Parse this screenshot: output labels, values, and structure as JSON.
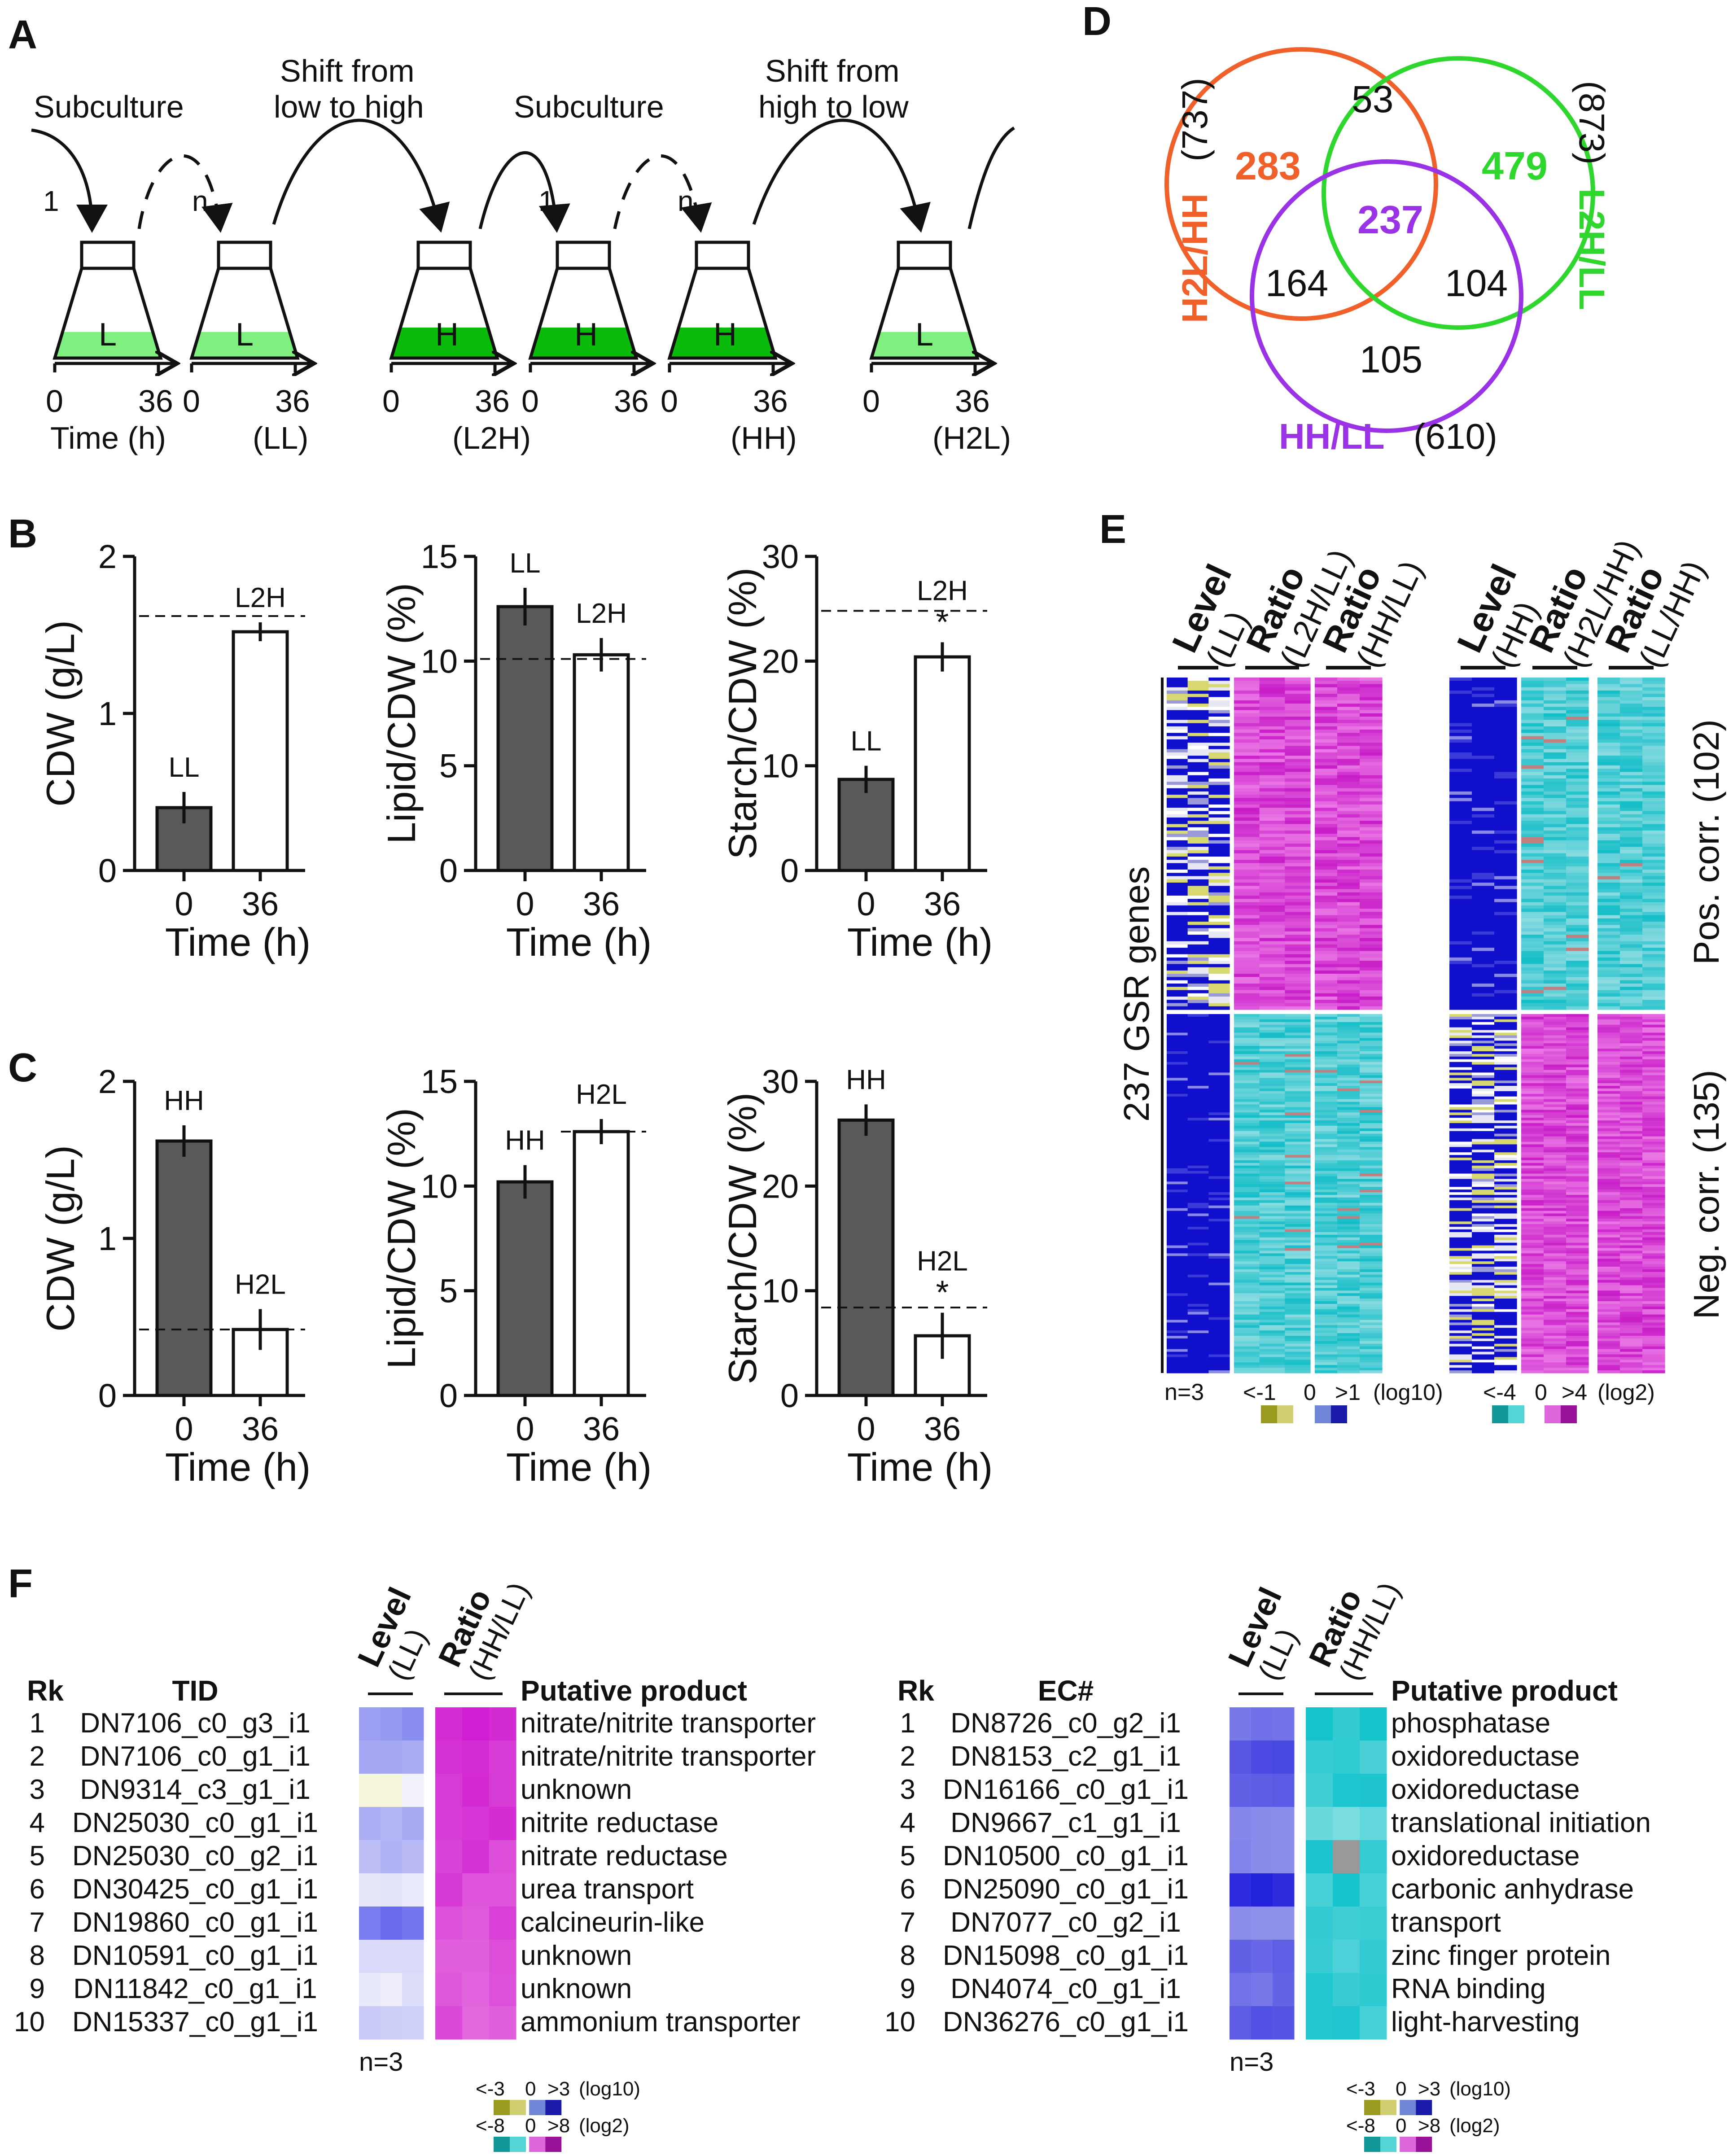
{
  "panels": {
    "A": "A",
    "B": "B",
    "C": "C",
    "D": "D",
    "E": "E",
    "F": "F"
  },
  "colors": {
    "venn_h2l": "#f0602a",
    "venn_l2h": "#2ed62e",
    "venn_hhll": "#9a32e6",
    "light_green": "#7ff07f",
    "dark_green": "#0bbb0b",
    "bar_dark": "#595959",
    "bar_light": "#ffffff",
    "heat_blue": "#1010cc",
    "heat_cyan": "#1fc8c8",
    "heat_magenta": "#d02ad0",
    "heat_yellow": "#d8d870"
  },
  "panelA": {
    "labels": {
      "subculture": "Subculture",
      "shift1_l1": "Shift from",
      "shift1_l2": "low to high",
      "shift2_l1": "Shift from",
      "shift2_l2": "high to low",
      "one": "1",
      "n": "n"
    },
    "flasks": [
      {
        "media": "L",
        "level": "low"
      },
      {
        "media": "L",
        "level": "low"
      },
      {
        "media": "H",
        "level": "high"
      },
      {
        "media": "H",
        "level": "high"
      },
      {
        "media": "H",
        "level": "high"
      },
      {
        "media": "L",
        "level": "low"
      }
    ],
    "axes": [
      {
        "start": "0",
        "end": "36",
        "below": "Time (h)"
      },
      {
        "start": "0",
        "end": "36",
        "below": "(LL)"
      },
      {
        "start": "0",
        "end": "36",
        "below": "(L2H)"
      },
      {
        "start": "0",
        "end": "36",
        "below": ""
      },
      {
        "start": "0",
        "end": "36",
        "below": "(HH)"
      },
      {
        "start": "0",
        "end": "36",
        "below": "(H2L)"
      }
    ]
  },
  "panelB": {
    "xlabel": "Time (h)",
    "x_ticks": [
      "0",
      "36"
    ],
    "charts": [
      {
        "ylabel": "CDW (g/L)",
        "ymax": 2,
        "yticks": [
          "0",
          "1",
          "2"
        ],
        "ytick_vals": [
          0,
          1,
          2
        ],
        "bars": [
          0.4,
          1.52
        ],
        "errs": [
          0.1,
          0.06
        ],
        "bar_labels": [
          "LL",
          "L2H"
        ],
        "dash": 1.62,
        "dash_span": "full",
        "star": ""
      },
      {
        "ylabel": "Lipid/CDW (%)",
        "ymax": 15,
        "yticks": [
          "0",
          "5",
          "10",
          "15"
        ],
        "ytick_vals": [
          0,
          5,
          10,
          15
        ],
        "bars": [
          12.6,
          10.3
        ],
        "errs": [
          0.9,
          0.8
        ],
        "bar_labels": [
          "LL",
          "L2H"
        ],
        "dash": 10.1,
        "dash_span": "full",
        "star": ""
      },
      {
        "ylabel": "Starch/CDW (%)",
        "ymax": 30,
        "yticks": [
          "0",
          "10",
          "20",
          "30"
        ],
        "ytick_vals": [
          0,
          10,
          20,
          30
        ],
        "bars": [
          8.7,
          20.4
        ],
        "errs": [
          1.3,
          1.4
        ],
        "bar_labels": [
          "LL",
          "L2H"
        ],
        "dash": 24.8,
        "dash_span": "full",
        "star": "*"
      }
    ]
  },
  "panelC": {
    "xlabel": "Time (h)",
    "x_ticks": [
      "0",
      "36"
    ],
    "charts": [
      {
        "ylabel": "CDW (g/L)",
        "ymax": 2,
        "yticks": [
          "0",
          "1",
          "2"
        ],
        "ytick_vals": [
          0,
          1,
          2
        ],
        "bars": [
          1.62,
          0.42
        ],
        "errs": [
          0.1,
          0.13
        ],
        "bar_labels": [
          "HH",
          "H2L"
        ],
        "dash": 0.42,
        "dash_span": "full",
        "star": ""
      },
      {
        "ylabel": "Lipid/CDW (%)",
        "ymax": 15,
        "yticks": [
          "0",
          "5",
          "10",
          "15"
        ],
        "ytick_vals": [
          0,
          5,
          10,
          15
        ],
        "bars": [
          10.2,
          12.6
        ],
        "errs": [
          0.8,
          0.6
        ],
        "bar_labels": [
          "HH",
          "H2L"
        ],
        "dash": 12.6,
        "dash_span": "right",
        "star": ""
      },
      {
        "ylabel": "Starch/CDW (%)",
        "ymax": 30,
        "yticks": [
          "0",
          "10",
          "20",
          "30"
        ],
        "ytick_vals": [
          0,
          10,
          20,
          30
        ],
        "bars": [
          26.3,
          5.7
        ],
        "errs": [
          1.5,
          2.2
        ],
        "bar_labels": [
          "HH",
          "H2L"
        ],
        "dash": 8.4,
        "dash_span": "full",
        "star": "*"
      }
    ]
  },
  "panelD": {
    "sets": [
      {
        "name": "H2L/HH",
        "total": "(737)"
      },
      {
        "name": "L2H/LL",
        "total": "(873)"
      },
      {
        "name": "HH/LL",
        "total": "(610)"
      }
    ],
    "regions": {
      "h2l_only": "283",
      "h2l_l2h": "53",
      "l2h_only": "479",
      "all": "237",
      "h2l_hhll": "164",
      "l2h_hhll": "104",
      "hhll_only": "105"
    }
  },
  "panelE": {
    "headers": [
      {
        "a": "Level",
        "b": "(LL)"
      },
      {
        "a": "Ratio",
        "b": "(L2H/LL)"
      },
      {
        "a": "Ratio",
        "b": "(HH/LL)"
      },
      {
        "a": "Level",
        "b": "(HH)"
      },
      {
        "a": "Ratio",
        "b": "(H2L/HH)"
      },
      {
        "a": "Ratio",
        "b": "(LL/HH)"
      }
    ],
    "ylabel": "237 GSR genes",
    "pos_label": "Pos. corr. (102)",
    "neg_label": "Neg. corr. (135)",
    "pos_count": 102,
    "neg_count": 135,
    "n_label": "n=3",
    "legend_left": {
      "lo": "<-1",
      "mid": "0",
      "hi": ">1",
      "unit": "(log10)"
    },
    "legend_right": {
      "lo": "<-4",
      "mid": "0",
      "hi": ">4",
      "unit": "(log2)"
    }
  },
  "panelF": {
    "left": {
      "col_rk": "Rk",
      "col_id": "TID",
      "col_prod": "Putative product",
      "h_level_a": "Level",
      "h_level_b": "(LL)",
      "h_ratio_a": "Ratio",
      "h_ratio_b": "(HH/LL)",
      "n_label": "n=3",
      "rows": [
        {
          "rk": "1",
          "id": "DN7106_c0_g3_i1",
          "prod": "nitrate/nitrite transporter"
        },
        {
          "rk": "2",
          "id": "DN7106_c0_g1_i1",
          "prod": "nitrate/nitrite transporter"
        },
        {
          "rk": "3",
          "id": "DN9314_c3_g1_i1",
          "prod": "unknown"
        },
        {
          "rk": "4",
          "id": "DN25030_c0_g1_i1",
          "prod": "nitrite reductase"
        },
        {
          "rk": "5",
          "id": "DN25030_c0_g2_i1",
          "prod": "nitrate reductase"
        },
        {
          "rk": "6",
          "id": "DN30425_c0_g1_i1",
          "prod": "urea transport"
        },
        {
          "rk": "7",
          "id": "DN19860_c0_g1_i1",
          "prod": "calcineurin-like"
        },
        {
          "rk": "8",
          "id": "DN10591_c0_g1_i1",
          "prod": "unknown"
        },
        {
          "rk": "9",
          "id": "DN11842_c0_g1_i1",
          "prod": "unknown"
        },
        {
          "rk": "10",
          "id": "DN15337_c0_g1_i1",
          "prod": "ammonium transporter"
        }
      ]
    },
    "right": {
      "col_rk": "Rk",
      "col_id": "EC#",
      "col_prod": "Putative product",
      "h_level_a": "Level",
      "h_level_b": "(LL)",
      "h_ratio_a": "Ratio",
      "h_ratio_b": "(HH/LL)",
      "n_label": "n=3",
      "rows": [
        {
          "rk": "1",
          "id": "DN8726_c0_g2_i1",
          "prod": "phosphatase"
        },
        {
          "rk": "2",
          "id": "DN8153_c2_g1_i1",
          "prod": "oxidoreductase"
        },
        {
          "rk": "3",
          "id": "DN16166_c0_g1_i1",
          "prod": "oxidoreductase"
        },
        {
          "rk": "4",
          "id": "DN9667_c1_g1_i1",
          "prod": "translational initiation"
        },
        {
          "rk": "5",
          "id": "DN10500_c0_g1_i1",
          "prod": "oxidoreductase"
        },
        {
          "rk": "6",
          "id": "DN25090_c0_g1_i1",
          "prod": "carbonic anhydrase"
        },
        {
          "rk": "7",
          "id": "DN7077_c0_g2_i1",
          "prod": "transport"
        },
        {
          "rk": "8",
          "id": "DN15098_c0_g1_i1",
          "prod": "zinc finger protein"
        },
        {
          "rk": "9",
          "id": "DN4074_c0_g1_i1",
          "prod": "RNA binding"
        },
        {
          "rk": "10",
          "id": "DN36276_c0_g1_i1",
          "prod": "light-harvesting"
        }
      ]
    },
    "legend_log10": {
      "lo": "<-3",
      "mid": "0",
      "hi": ">3",
      "unit": "(log10)"
    },
    "legend_log2": {
      "lo": "<-8",
      "mid": "0",
      "hi": ">8",
      "unit": "(log2)"
    }
  },
  "chart_data": [
    {
      "type": "bar",
      "panel": "B1",
      "categories": [
        "0",
        "36"
      ],
      "values": [
        0.4,
        1.52
      ],
      "errors": [
        0.1,
        0.06
      ],
      "bar_labels": [
        "LL",
        "L2H"
      ],
      "reference_line": 1.62,
      "ylabel": "CDW (g/L)",
      "xlabel": "Time (h)",
      "ylim": [
        0,
        2
      ]
    },
    {
      "type": "bar",
      "panel": "B2",
      "categories": [
        "0",
        "36"
      ],
      "values": [
        12.6,
        10.3
      ],
      "errors": [
        0.9,
        0.8
      ],
      "bar_labels": [
        "LL",
        "L2H"
      ],
      "reference_line": 10.1,
      "ylabel": "Lipid/CDW (%)",
      "xlabel": "Time (h)",
      "ylim": [
        0,
        15
      ]
    },
    {
      "type": "bar",
      "panel": "B3",
      "categories": [
        "0",
        "36"
      ],
      "values": [
        8.7,
        20.4
      ],
      "errors": [
        1.3,
        1.4
      ],
      "bar_labels": [
        "LL",
        "L2H"
      ],
      "reference_line": 24.8,
      "significance": "*",
      "ylabel": "Starch/CDW (%)",
      "xlabel": "Time (h)",
      "ylim": [
        0,
        30
      ]
    },
    {
      "type": "bar",
      "panel": "C1",
      "categories": [
        "0",
        "36"
      ],
      "values": [
        1.62,
        0.42
      ],
      "errors": [
        0.1,
        0.13
      ],
      "bar_labels": [
        "HH",
        "H2L"
      ],
      "reference_line": 0.42,
      "ylabel": "CDW (g/L)",
      "xlabel": "Time (h)",
      "ylim": [
        0,
        2
      ]
    },
    {
      "type": "bar",
      "panel": "C2",
      "categories": [
        "0",
        "36"
      ],
      "values": [
        10.2,
        12.6
      ],
      "errors": [
        0.8,
        0.6
      ],
      "bar_labels": [
        "HH",
        "H2L"
      ],
      "reference_line": 12.6,
      "ylabel": "Lipid/CDW (%)",
      "xlabel": "Time (h)",
      "ylim": [
        0,
        15
      ]
    },
    {
      "type": "bar",
      "panel": "C3",
      "categories": [
        "0",
        "36"
      ],
      "values": [
        26.3,
        5.7
      ],
      "errors": [
        1.5,
        2.2
      ],
      "bar_labels": [
        "HH",
        "H2L"
      ],
      "reference_line": 8.4,
      "significance": "*",
      "ylabel": "Starch/CDW (%)",
      "xlabel": "Time (h)",
      "ylim": [
        0,
        30
      ]
    }
  ]
}
